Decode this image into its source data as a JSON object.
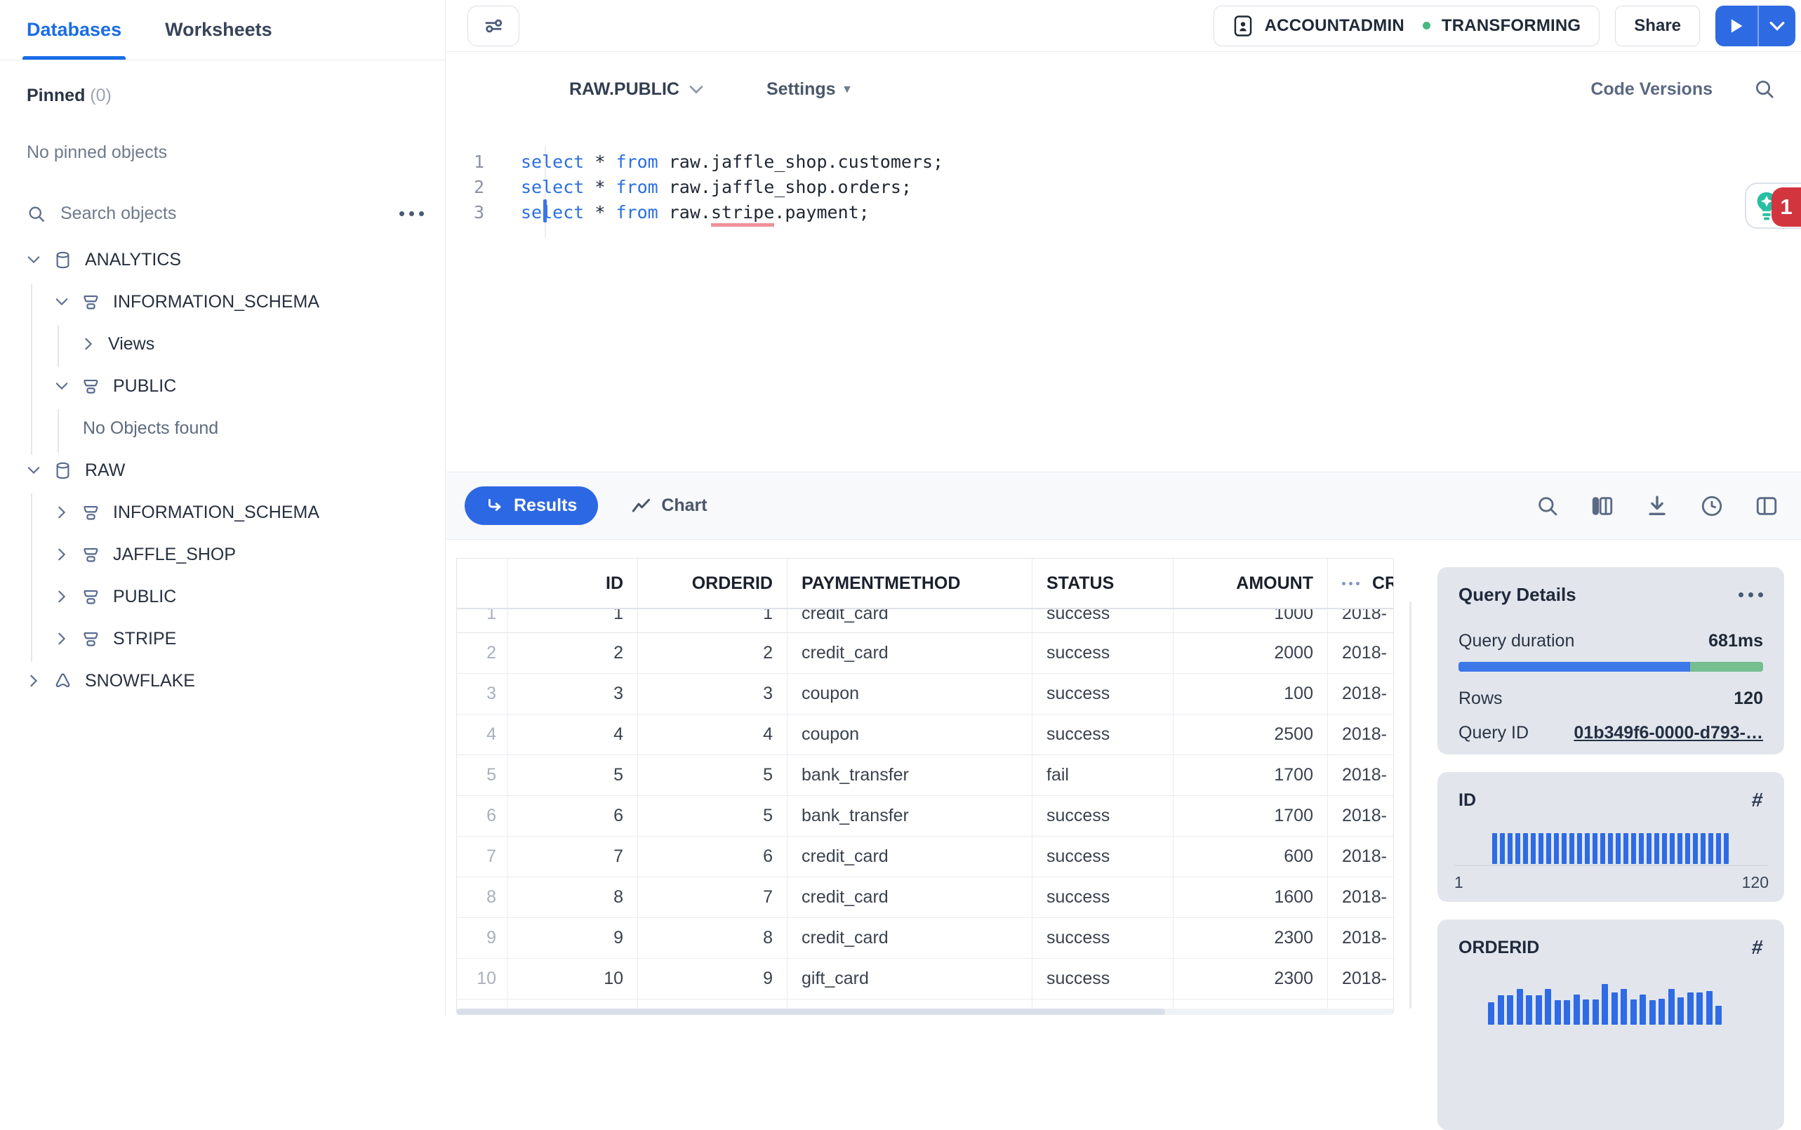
{
  "sidebar": {
    "tabs": [
      {
        "label": "Databases"
      },
      {
        "label": "Worksheets"
      }
    ],
    "active_tab": "Databases",
    "pinned": {
      "label": "Pinned",
      "count": "(0)",
      "empty": "No pinned objects"
    },
    "search": {
      "placeholder": "Search objects"
    },
    "tree": [
      {
        "label": "ANALYTICS",
        "type": "database",
        "chevron": "down",
        "level": 0
      },
      {
        "label": "INFORMATION_SCHEMA",
        "type": "schema",
        "chevron": "down",
        "level": 1
      },
      {
        "label": "Views",
        "type": "folder",
        "chevron": "right",
        "level": 2
      },
      {
        "label": "PUBLIC",
        "type": "schema",
        "chevron": "down",
        "level": 1
      },
      {
        "label": "No Objects found",
        "type": "empty",
        "chevron": null,
        "level": 2
      },
      {
        "label": "RAW",
        "type": "database",
        "chevron": "down",
        "level": 0
      },
      {
        "label": "INFORMATION_SCHEMA",
        "type": "schema",
        "chevron": "right",
        "level": 1
      },
      {
        "label": "JAFFLE_SHOP",
        "type": "schema",
        "chevron": "right",
        "level": 1
      },
      {
        "label": "PUBLIC",
        "type": "schema",
        "chevron": "right",
        "level": 1
      },
      {
        "label": "STRIPE",
        "type": "schema",
        "chevron": "right",
        "level": 1
      },
      {
        "label": "SNOWFLAKE",
        "type": "application",
        "chevron": "right",
        "level": 0
      }
    ]
  },
  "topbar": {
    "context_button": {
      "role": "ACCOUNTADMIN",
      "warehouse": "TRANSFORMING"
    },
    "share": "Share"
  },
  "worksheet": {
    "context": "RAW.PUBLIC",
    "settings": "Settings",
    "code_versions": "Code Versions",
    "editor": {
      "lines": [
        {
          "num": "1",
          "segs": [
            {
              "c": "kw",
              "t": "select"
            },
            {
              "c": "plain",
              "t": " * "
            },
            {
              "c": "kw",
              "t": "from"
            },
            {
              "c": "plain",
              "t": " raw.jaffle_shop.customers;"
            }
          ]
        },
        {
          "num": "2",
          "segs": [
            {
              "c": "kw",
              "t": "select"
            },
            {
              "c": "plain",
              "t": " * "
            },
            {
              "c": "kw",
              "t": "from"
            },
            {
              "c": "plain",
              "t": " raw.jaffle_shop.orders;"
            }
          ]
        },
        {
          "num": "3",
          "segs": [
            {
              "c": "kw",
              "t": "select"
            },
            {
              "c": "plain",
              "t": " * "
            },
            {
              "c": "kw",
              "t": "from"
            },
            {
              "c": "plain",
              "t": " raw."
            },
            {
              "c": "err",
              "t": "stripe"
            },
            {
              "c": "plain",
              "t": ".payment;"
            }
          ]
        }
      ],
      "assistant_badge": "1"
    }
  },
  "results": {
    "tabs": {
      "results": "Results",
      "chart": "Chart"
    },
    "table": {
      "columns": [
        "",
        "ID",
        "ORDERID",
        "PAYMENTMETHOD",
        "STATUS",
        "AMOUNT",
        "CREATED"
      ],
      "rows": [
        [
          "1",
          "1",
          "1",
          "credit_card",
          "success",
          "1000",
          "2018-"
        ],
        [
          "2",
          "2",
          "2",
          "credit_card",
          "success",
          "2000",
          "2018-"
        ],
        [
          "3",
          "3",
          "3",
          "coupon",
          "success",
          "100",
          "2018-"
        ],
        [
          "4",
          "4",
          "4",
          "coupon",
          "success",
          "2500",
          "2018-"
        ],
        [
          "5",
          "5",
          "5",
          "bank_transfer",
          "fail",
          "1700",
          "2018-"
        ],
        [
          "6",
          "6",
          "5",
          "bank_transfer",
          "success",
          "1700",
          "2018-"
        ],
        [
          "7",
          "7",
          "6",
          "credit_card",
          "success",
          "600",
          "2018-"
        ],
        [
          "8",
          "8",
          "7",
          "credit_card",
          "success",
          "1600",
          "2018-"
        ],
        [
          "9",
          "9",
          "8",
          "credit_card",
          "success",
          "2300",
          "2018-"
        ],
        [
          "10",
          "10",
          "9",
          "gift_card",
          "success",
          "2300",
          "2018-"
        ]
      ]
    }
  },
  "query_details": {
    "title": "Query Details",
    "duration_label": "Query duration",
    "duration_value": "681ms",
    "duration_split": {
      "blue": 0.76,
      "green": 0.24
    },
    "rows_label": "Rows",
    "rows_value": "120",
    "query_id_label": "Query ID",
    "query_id_value": "01b349f6-0000-d793-…"
  },
  "column_cards": [
    {
      "title": "ID",
      "min": "1",
      "max": "120",
      "bars": [
        1,
        1,
        1,
        1,
        1,
        1,
        1,
        1,
        1,
        1,
        1,
        1,
        1,
        1,
        1,
        1,
        1,
        1,
        1,
        1,
        1,
        1,
        1,
        1,
        1,
        1,
        1,
        1,
        1,
        1,
        1
      ]
    },
    {
      "title": "ORDERID",
      "bars": [
        0.55,
        0.72,
        0.72,
        0.88,
        0.72,
        0.72,
        0.88,
        0.6,
        0.6,
        0.74,
        0.62,
        0.62,
        1.0,
        0.8,
        0.88,
        0.62,
        0.74,
        0.6,
        0.64,
        0.88,
        0.68,
        0.8,
        0.8,
        0.82,
        0.46
      ]
    }
  ],
  "icons": {
    "hash": "#",
    "caret_down": "▾"
  },
  "colors": {
    "accent": "#1A6CE7",
    "run_button": "#2E6BE2",
    "results_pill": "#2D68E4",
    "success_green": "#47B881",
    "bar_blue": "#2E6BE5",
    "duration_blue": "#3C78E8",
    "duration_green": "#74BE90",
    "error_underline": "#F0919B",
    "badge_red": "#D2353E",
    "assistant_teal": "#27BFA3",
    "cursor_blue": "#3B76E8"
  }
}
